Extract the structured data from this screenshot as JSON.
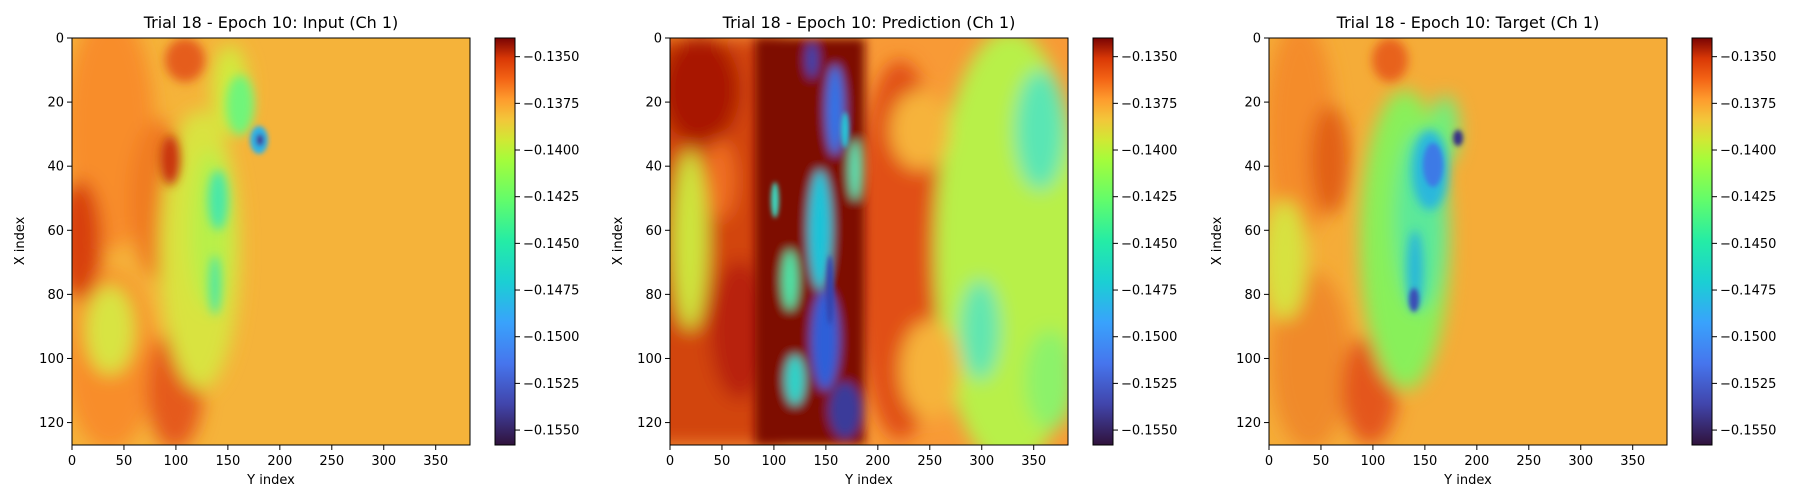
{
  "chart_data": [
    {
      "type": "heatmap",
      "title": "Trial 18 - Epoch 10: Input (Ch 1)",
      "xlabel": "Y index",
      "ylabel": "X index",
      "xlim": [
        0,
        383
      ],
      "ylim": [
        127,
        0
      ],
      "xticks": [
        "0",
        "50",
        "100",
        "150",
        "200",
        "250",
        "300",
        "350"
      ],
      "yticks": [
        "0",
        "20",
        "40",
        "60",
        "80",
        "100",
        "120"
      ],
      "colormap": "turbo",
      "colorbar": {
        "vmin": -0.1558,
        "vmax": -0.134,
        "ticks": [
          "−0.1350",
          "−0.1375",
          "−0.1400",
          "−0.1425",
          "−0.1450",
          "−0.1475",
          "−0.1500",
          "−0.1525",
          "−0.1550"
        ]
      }
    },
    {
      "type": "heatmap",
      "title": "Trial 18 - Epoch 10: Prediction (Ch 1)",
      "xlabel": "Y index",
      "ylabel": "X index",
      "xlim": [
        0,
        383
      ],
      "ylim": [
        127,
        0
      ],
      "xticks": [
        "0",
        "50",
        "100",
        "150",
        "200",
        "250",
        "300",
        "350"
      ],
      "yticks": [
        "0",
        "20",
        "40",
        "60",
        "80",
        "100",
        "120"
      ],
      "colormap": "turbo",
      "colorbar": {
        "vmin": -0.1558,
        "vmax": -0.134,
        "ticks": [
          "−0.1350",
          "−0.1375",
          "−0.1400",
          "−0.1425",
          "−0.1450",
          "−0.1475",
          "−0.1500",
          "−0.1525",
          "−0.1550"
        ]
      }
    },
    {
      "type": "heatmap",
      "title": "Trial 18 - Epoch 10: Target (Ch 1)",
      "xlabel": "Y index",
      "ylabel": "X index",
      "xlim": [
        0,
        383
      ],
      "ylim": [
        127,
        0
      ],
      "xticks": [
        "0",
        "50",
        "100",
        "150",
        "200",
        "250",
        "300",
        "350"
      ],
      "yticks": [
        "0",
        "20",
        "40",
        "60",
        "80",
        "100",
        "120"
      ],
      "colormap": "turbo",
      "colorbar": {
        "vmin": -0.1558,
        "vmax": -0.134,
        "ticks": [
          "−0.1350",
          "−0.1375",
          "−0.1400",
          "−0.1425",
          "−0.1450",
          "−0.1475",
          "−0.1500",
          "−0.1525",
          "−0.1550"
        ]
      }
    }
  ]
}
